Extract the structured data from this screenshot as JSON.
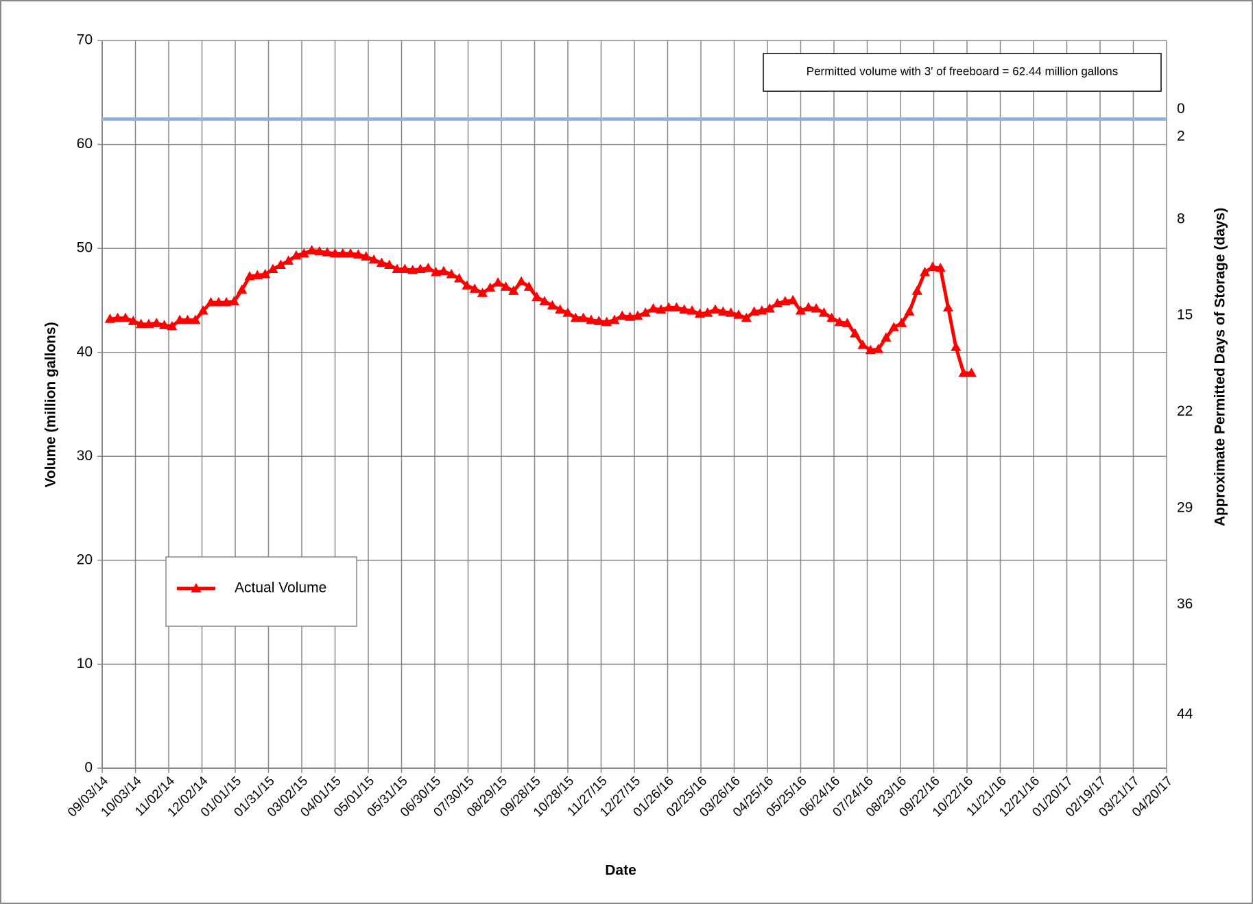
{
  "chart_data": {
    "type": "line",
    "x_label": "Date",
    "y_label": "Volume (million gallons)",
    "y2_label": "Approximate Permitted Days of Storage (days)",
    "annotation": "Permitted volume with 3' of freeboard = 62.44 million gallons",
    "reference_line": {
      "value": 62.44,
      "color": "#8db3e2"
    },
    "xlim": [
      "09/03/14",
      "04/20/17"
    ],
    "xticks": [
      "09/03/14",
      "10/03/14",
      "11/02/14",
      "12/02/14",
      "01/01/15",
      "01/31/15",
      "03/02/15",
      "04/01/15",
      "05/01/15",
      "05/31/15",
      "06/30/15",
      "07/30/15",
      "08/29/15",
      "09/28/15",
      "10/28/15",
      "11/27/15",
      "12/27/15",
      "01/26/16",
      "02/25/16",
      "03/26/16",
      "04/25/16",
      "05/25/16",
      "06/24/16",
      "07/24/16",
      "08/23/16",
      "09/22/16",
      "10/22/16",
      "11/21/16",
      "12/21/16",
      "01/20/17",
      "02/19/17",
      "03/21/17",
      "04/20/17"
    ],
    "ylim": [
      0,
      70
    ],
    "yticks": [
      0,
      10,
      20,
      30,
      40,
      50,
      60,
      70
    ],
    "y2lim": [
      47.9,
      -5
    ],
    "y2ticks": [
      0,
      2,
      8,
      15,
      22,
      29,
      36,
      44
    ],
    "grid": true,
    "legend": "lower-left",
    "x": [
      "09/10/14",
      "09/17/14",
      "09/24/14",
      "10/01/14",
      "10/08/14",
      "10/15/14",
      "10/22/14",
      "10/29/14",
      "11/05/14",
      "11/12/14",
      "11/19/14",
      "11/26/14",
      "12/03/14",
      "12/10/14",
      "12/17/14",
      "12/24/14",
      "12/31/14",
      "01/07/15",
      "01/14/15",
      "01/21/15",
      "01/28/15",
      "02/04/15",
      "02/11/15",
      "02/18/15",
      "02/25/15",
      "03/04/15",
      "03/11/15",
      "03/18/15",
      "03/25/15",
      "04/01/15",
      "04/08/15",
      "04/15/15",
      "04/22/15",
      "04/29/15",
      "05/06/15",
      "05/13/15",
      "05/20/15",
      "05/27/15",
      "06/03/15",
      "06/10/15",
      "06/17/15",
      "06/24/15",
      "07/01/15",
      "07/08/15",
      "07/15/15",
      "07/22/15",
      "07/29/15",
      "08/05/15",
      "08/12/15",
      "08/19/15",
      "08/26/15",
      "09/02/15",
      "09/09/15",
      "09/16/15",
      "09/23/15",
      "09/30/15",
      "10/07/15",
      "10/14/15",
      "10/21/15",
      "10/28/15",
      "11/04/15",
      "11/11/15",
      "11/18/15",
      "11/25/15",
      "12/02/15",
      "12/09/15",
      "12/16/15",
      "12/23/15",
      "12/30/15",
      "01/06/16",
      "01/13/16",
      "01/20/16",
      "01/27/16",
      "02/03/16",
      "02/10/16",
      "02/17/16",
      "02/24/16",
      "03/02/16",
      "03/09/16",
      "03/16/16",
      "03/23/16",
      "03/30/16",
      "04/06/16",
      "04/13/16",
      "04/20/16",
      "04/27/16",
      "05/04/16",
      "05/11/16",
      "05/18/16",
      "05/25/16",
      "06/01/16",
      "06/08/16",
      "06/15/16",
      "06/22/16",
      "06/29/16",
      "07/06/16",
      "07/13/16",
      "07/20/16",
      "07/27/16",
      "08/03/16",
      "08/10/16",
      "08/17/16",
      "08/24/16",
      "08/31/16",
      "09/07/16",
      "09/14/16",
      "09/21/16",
      "09/28/16",
      "10/05/16",
      "10/12/16",
      "10/19/16",
      "10/26/16"
    ],
    "series": [
      {
        "name": "Actual Volume",
        "color": "#ff0000",
        "values": [
          43.2,
          43.3,
          43.3,
          43.0,
          42.7,
          42.7,
          42.8,
          42.6,
          42.5,
          43.1,
          43.1,
          43.1,
          44.0,
          44.8,
          44.8,
          44.8,
          44.9,
          46.0,
          47.3,
          47.4,
          47.5,
          48.0,
          48.4,
          48.8,
          49.3,
          49.5,
          49.8,
          49.7,
          49.6,
          49.5,
          49.5,
          49.5,
          49.4,
          49.2,
          48.9,
          48.6,
          48.4,
          48.0,
          48.0,
          47.9,
          48.0,
          48.1,
          47.7,
          47.8,
          47.5,
          47.1,
          46.4,
          46.1,
          45.7,
          46.2,
          46.7,
          46.3,
          45.9,
          46.8,
          46.3,
          45.3,
          44.9,
          44.5,
          44.1,
          43.8,
          43.3,
          43.3,
          43.1,
          43.0,
          42.9,
          43.1,
          43.5,
          43.4,
          43.5,
          43.8,
          44.2,
          44.1,
          44.3,
          44.3,
          44.1,
          44.0,
          43.7,
          43.8,
          44.1,
          43.9,
          43.8,
          43.6,
          43.3,
          43.9,
          44.0,
          44.2,
          44.7,
          44.9,
          45.0,
          44.0,
          44.3,
          44.2,
          43.8,
          43.3,
          42.9,
          42.8,
          41.8,
          40.7,
          40.2,
          40.3,
          41.4,
          42.4,
          42.8,
          43.9,
          45.9,
          47.7,
          48.2,
          48.1,
          44.3,
          40.5,
          38.0,
          38.0
        ]
      }
    ]
  }
}
